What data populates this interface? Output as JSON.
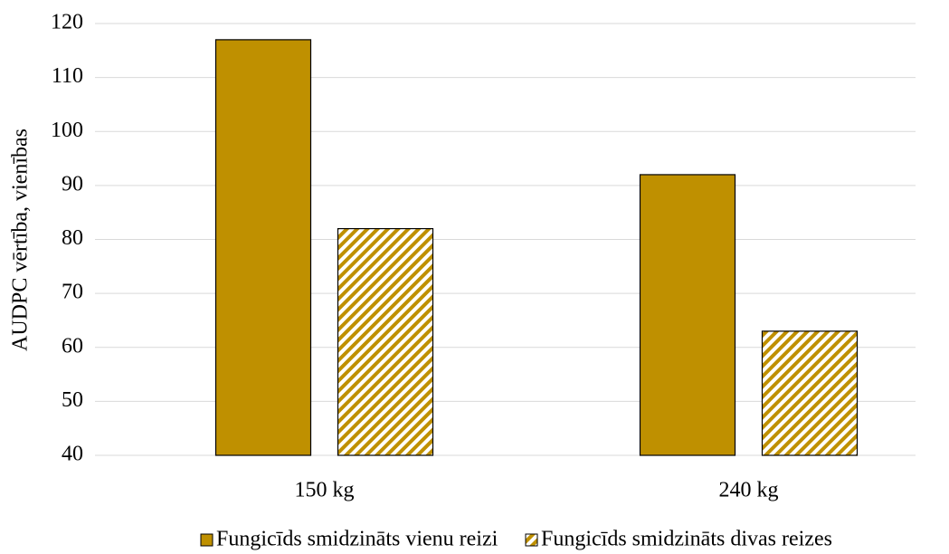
{
  "chart_data": {
    "type": "bar",
    "ylabel": "AUDPC vērtība, vienības",
    "categories": [
      "150 kg",
      "240 kg"
    ],
    "series": [
      {
        "name": "Fungicīds smidzināts vienu reizi",
        "color": "#bf9000",
        "values": [
          117,
          92
        ]
      },
      {
        "name": "Fungicīds smidzināts divas reizes",
        "color": "#bf9000",
        "hatch": true,
        "values": [
          82,
          63
        ]
      }
    ],
    "ylim": [
      40,
      120
    ],
    "yticks": [
      40,
      50,
      60,
      70,
      80,
      90,
      100,
      110,
      120
    ],
    "grid": true,
    "legend": "bottom"
  }
}
